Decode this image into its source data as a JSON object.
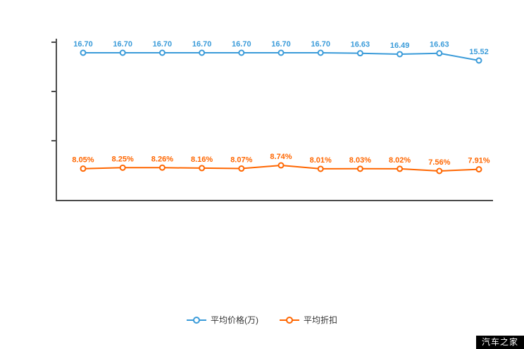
{
  "chart_data": {
    "type": "line",
    "title": "",
    "grid": false,
    "legend_position": "bottom",
    "x_axis": {
      "tick_labels_visible": false
    },
    "series": [
      {
        "name": "平均价格(万)",
        "color": "#3a9bd9",
        "values": [
          16.7,
          16.7,
          16.7,
          16.7,
          16.7,
          16.7,
          16.7,
          16.63,
          16.49,
          16.63,
          15.52
        ],
        "labels": [
          "16.70",
          "16.70",
          "16.70",
          "16.70",
          "16.70",
          "16.70",
          "16.70",
          "16.63",
          "16.49",
          "16.63",
          "15.52"
        ]
      },
      {
        "name": "平均折扣",
        "color": "#ff6600",
        "values": [
          8.05,
          8.25,
          8.26,
          8.16,
          8.07,
          8.74,
          8.01,
          8.03,
          8.02,
          7.56,
          7.91
        ],
        "labels": [
          "8.05%",
          "8.25%",
          "8.26%",
          "8.16%",
          "8.07%",
          "8.74%",
          "8.01%",
          "8.03%",
          "8.02%",
          "7.56%",
          "7.91%"
        ]
      }
    ]
  },
  "legend": {
    "items": [
      {
        "label": "平均价格(万)",
        "color": "#3a9bd9"
      },
      {
        "label": "平均折扣",
        "color": "#ff6600"
      }
    ]
  },
  "watermark": {
    "text": "汽车之家"
  }
}
